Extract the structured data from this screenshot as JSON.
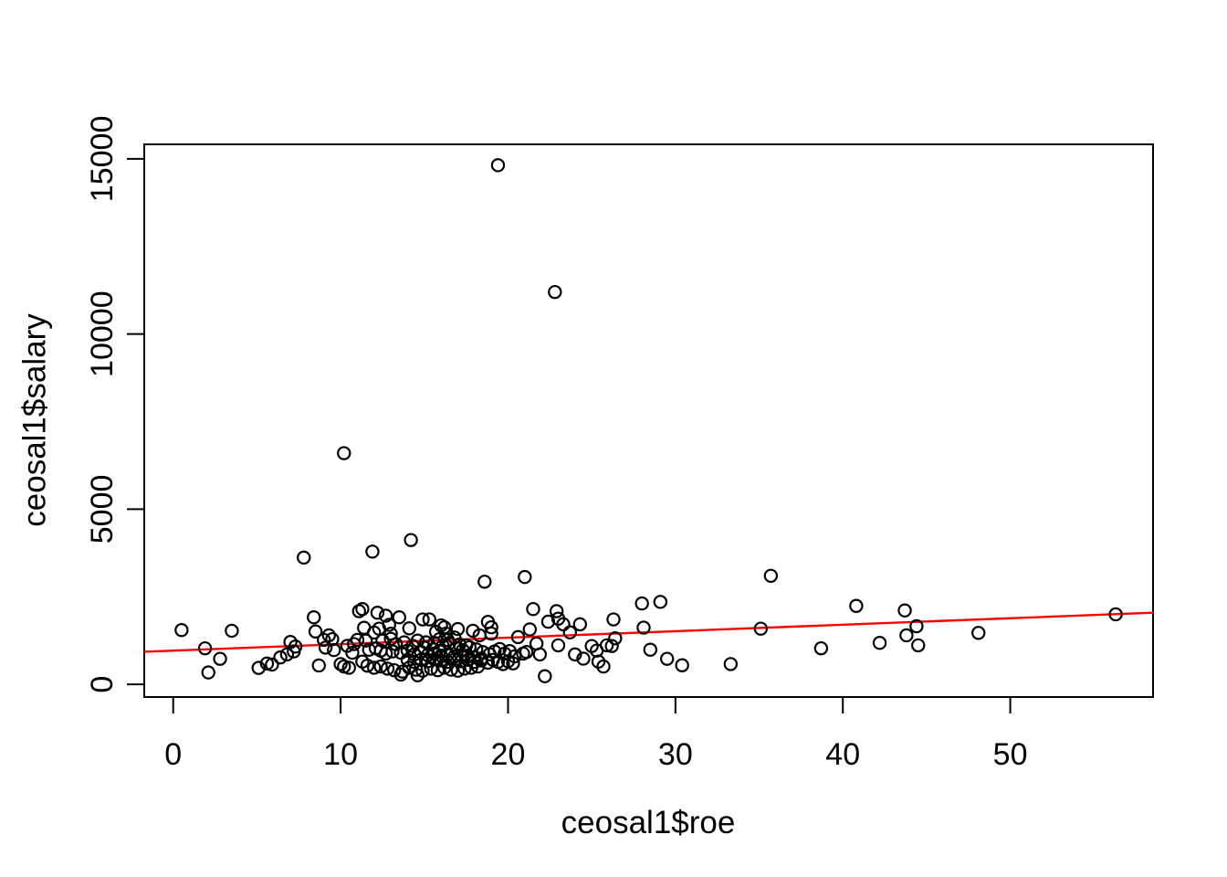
{
  "figure": {
    "background": "#ffffff",
    "point_color": "#000000",
    "axis_color": "#000000",
    "line_color": "#ff0000"
  },
  "chart_data": {
    "type": "scatter",
    "title": "",
    "xlabel": "ceosal1$roe",
    "ylabel": "ceosal1$salary",
    "x_ticks": [
      0,
      10,
      20,
      30,
      40,
      50
    ],
    "y_ticks": [
      0,
      5000,
      10000,
      15000
    ],
    "xlim": [
      -1.73,
      58.53
    ],
    "ylim": [
      -361,
      15415
    ],
    "grid": false,
    "legend": false,
    "marker": "open-circle",
    "fit_line": {
      "slope": 18.5,
      "intercept": 963.19,
      "color": "#ff0000"
    },
    "points": [
      [
        0.5,
        1550
      ],
      [
        1.9,
        1030
      ],
      [
        2.1,
        340
      ],
      [
        2.8,
        730
      ],
      [
        3.5,
        1530
      ],
      [
        5.1,
        470
      ],
      [
        5.6,
        595
      ],
      [
        5.9,
        565
      ],
      [
        6.4,
        770
      ],
      [
        6.8,
        855
      ],
      [
        7.0,
        1210
      ],
      [
        7.2,
        940
      ],
      [
        7.3,
        1080
      ],
      [
        7.8,
        3620
      ],
      [
        8.4,
        1915
      ],
      [
        8.5,
        1510
      ],
      [
        8.7,
        540
      ],
      [
        9.0,
        1270
      ],
      [
        9.1,
        1050
      ],
      [
        9.3,
        1400
      ],
      [
        9.5,
        1290
      ],
      [
        9.6,
        980
      ],
      [
        10.0,
        580
      ],
      [
        10.2,
        510
      ],
      [
        10.2,
        6600
      ],
      [
        10.4,
        1100
      ],
      [
        10.5,
        475
      ],
      [
        10.7,
        905
      ],
      [
        10.8,
        1150
      ],
      [
        11.0,
        1270
      ],
      [
        11.1,
        2090
      ],
      [
        11.3,
        2150
      ],
      [
        11.3,
        650
      ],
      [
        11.4,
        1615
      ],
      [
        11.5,
        1250
      ],
      [
        11.6,
        535
      ],
      [
        11.7,
        990
      ],
      [
        11.9,
        3790
      ],
      [
        12.0,
        475
      ],
      [
        12.0,
        1480
      ],
      [
        12.1,
        1030
      ],
      [
        12.2,
        2045
      ],
      [
        12.3,
        1590
      ],
      [
        12.4,
        965
      ],
      [
        12.4,
        510
      ],
      [
        12.5,
        1250
      ],
      [
        12.7,
        1960
      ],
      [
        12.7,
        880
      ],
      [
        12.8,
        450
      ],
      [
        12.9,
        1700
      ],
      [
        13.0,
        1445
      ],
      [
        13.0,
        1300
      ],
      [
        13.1,
        940
      ],
      [
        13.2,
        405
      ],
      [
        13.3,
        1150
      ],
      [
        13.5,
        1915
      ],
      [
        13.6,
        905
      ],
      [
        13.6,
        280
      ],
      [
        13.7,
        365
      ],
      [
        13.8,
        1200
      ],
      [
        14.0,
        965
      ],
      [
        14.0,
        700
      ],
      [
        14.1,
        475
      ],
      [
        14.1,
        1600
      ],
      [
        14.2,
        4120
      ],
      [
        14.3,
        1100
      ],
      [
        14.4,
        855
      ],
      [
        14.4,
        640
      ],
      [
        14.5,
        420
      ],
      [
        14.6,
        1250
      ],
      [
        14.6,
        260
      ],
      [
        14.8,
        925
      ],
      [
        14.8,
        700
      ],
      [
        14.9,
        1855
      ],
      [
        14.9,
        390
      ],
      [
        15.0,
        1050
      ],
      [
        15.1,
        1200
      ],
      [
        15.2,
        835
      ],
      [
        15.2,
        660
      ],
      [
        15.3,
        1855
      ],
      [
        15.4,
        450
      ],
      [
        15.5,
        1000
      ],
      [
        15.6,
        1185
      ],
      [
        15.6,
        880
      ],
      [
        15.6,
        720
      ],
      [
        15.7,
        1500
      ],
      [
        15.8,
        405
      ],
      [
        15.9,
        1290
      ],
      [
        15.9,
        950
      ],
      [
        16.0,
        1685
      ],
      [
        16.0,
        820
      ],
      [
        16.0,
        680
      ],
      [
        16.1,
        1100
      ],
      [
        16.2,
        1630
      ],
      [
        16.2,
        475
      ],
      [
        16.3,
        1450
      ],
      [
        16.4,
        1270
      ],
      [
        16.4,
        855
      ],
      [
        16.4,
        640
      ],
      [
        16.5,
        1180
      ],
      [
        16.6,
        420
      ],
      [
        16.8,
        1340
      ],
      [
        16.8,
        795
      ],
      [
        16.8,
        700
      ],
      [
        16.9,
        1040
      ],
      [
        17.0,
        1580
      ],
      [
        17.0,
        390
      ],
      [
        17.1,
        1140
      ],
      [
        17.2,
        835
      ],
      [
        17.2,
        660
      ],
      [
        17.3,
        980
      ],
      [
        17.4,
        450
      ],
      [
        17.5,
        1115
      ],
      [
        17.6,
        820
      ],
      [
        17.6,
        700
      ],
      [
        17.7,
        1060
      ],
      [
        17.8,
        475
      ],
      [
        17.9,
        1530
      ],
      [
        18.0,
        770
      ],
      [
        18.0,
        640
      ],
      [
        18.1,
        1000
      ],
      [
        18.2,
        510
      ],
      [
        18.3,
        1400
      ],
      [
        18.4,
        735
      ],
      [
        18.4,
        680
      ],
      [
        18.5,
        920
      ],
      [
        18.6,
        2930
      ],
      [
        18.8,
        1785
      ],
      [
        18.8,
        620
      ],
      [
        18.9,
        860
      ],
      [
        19.0,
        1630
      ],
      [
        19.0,
        1450
      ],
      [
        19.1,
        700
      ],
      [
        19.2,
        940
      ],
      [
        19.4,
        14820
      ],
      [
        19.4,
        640
      ],
      [
        19.5,
        1010
      ],
      [
        19.7,
        580
      ],
      [
        19.8,
        880
      ],
      [
        20.0,
        660
      ],
      [
        20.1,
        950
      ],
      [
        20.3,
        600
      ],
      [
        20.4,
        800
      ],
      [
        20.6,
        1350
      ],
      [
        20.9,
        880
      ],
      [
        21.0,
        3065
      ],
      [
        21.1,
        925
      ],
      [
        21.3,
        1570
      ],
      [
        21.5,
        2150
      ],
      [
        21.7,
        1165
      ],
      [
        21.9,
        855
      ],
      [
        22.2,
        233
      ],
      [
        22.4,
        1790
      ],
      [
        22.8,
        11200
      ],
      [
        22.9,
        2090
      ],
      [
        23.0,
        1875
      ],
      [
        23.0,
        1115
      ],
      [
        23.3,
        1715
      ],
      [
        23.7,
        1485
      ],
      [
        24.0,
        855
      ],
      [
        24.3,
        1715
      ],
      [
        24.5,
        735
      ],
      [
        25.0,
        1095
      ],
      [
        25.3,
        965
      ],
      [
        25.4,
        650
      ],
      [
        25.7,
        510
      ],
      [
        25.9,
        1115
      ],
      [
        26.2,
        1095
      ],
      [
        26.3,
        1855
      ],
      [
        26.4,
        1315
      ],
      [
        28.0,
        2310
      ],
      [
        28.1,
        1620
      ],
      [
        28.5,
        990
      ],
      [
        29.1,
        2355
      ],
      [
        29.5,
        730
      ],
      [
        30.4,
        545
      ],
      [
        33.3,
        580
      ],
      [
        35.1,
        1590
      ],
      [
        35.7,
        3100
      ],
      [
        38.7,
        1030
      ],
      [
        40.8,
        2240
      ],
      [
        42.2,
        1185
      ],
      [
        43.7,
        2110
      ],
      [
        43.8,
        1400
      ],
      [
        44.4,
        1660
      ],
      [
        44.5,
        1115
      ],
      [
        48.1,
        1470
      ],
      [
        56.3,
        2000
      ]
    ]
  }
}
